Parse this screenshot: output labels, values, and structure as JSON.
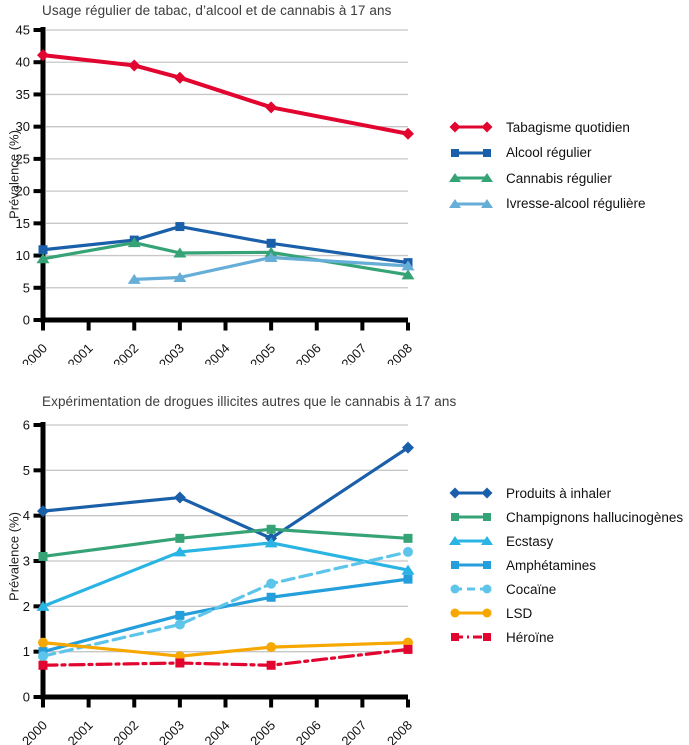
{
  "chart_data": [
    {
      "type": "line",
      "title": "Usage régulier de tabac, d’alcool et de cannabis à 17 ans",
      "ylabel": "Prévalence (%)",
      "xlabel": "",
      "x": [
        2000,
        2002,
        2003,
        2005,
        2008
      ],
      "x_ticks": [
        2000,
        2001,
        2002,
        2003,
        2004,
        2005,
        2006,
        2007,
        2008
      ],
      "xlim": [
        2000,
        2008
      ],
      "ylim": [
        0,
        45
      ],
      "y_tick_step": 5,
      "grid": true,
      "legend_position": "right",
      "series": [
        {
          "key": "tabagisme-quotidien",
          "name": "Tabagisme quotidien",
          "color": "#e2052f",
          "marker": "diamond",
          "dash": "solid",
          "values": [
            41.1,
            39.5,
            37.6,
            33.0,
            28.9
          ]
        },
        {
          "key": "alcool-regulier",
          "name": "Alcool régulier",
          "color": "#1a5fa9",
          "marker": "square",
          "dash": "solid",
          "values": [
            10.9,
            12.4,
            14.5,
            11.9,
            8.9
          ]
        },
        {
          "key": "cannabis-regulier",
          "name": "Cannabis régulier",
          "color": "#36a377",
          "marker": "triangle",
          "dash": "solid",
          "values": [
            9.5,
            12.0,
            10.4,
            10.5,
            7.0
          ]
        },
        {
          "key": "ivresse-alcool-reguliere",
          "name": "Ivresse-alcool régulière",
          "color": "#66aed7",
          "marker": "triangle",
          "dash": "solid",
          "values": [
            null,
            6.3,
            6.6,
            9.7,
            8.4
          ]
        }
      ]
    },
    {
      "type": "line",
      "title": "Expérimentation de drogues illicites autres que le cannabis à 17 ans",
      "ylabel": "Prévalence (%)",
      "xlabel": "",
      "x": [
        2000,
        2003,
        2005,
        2008
      ],
      "x_ticks": [
        2000,
        2001,
        2002,
        2003,
        2004,
        2005,
        2006,
        2007,
        2008
      ],
      "xlim": [
        2000,
        2008
      ],
      "ylim": [
        0,
        6
      ],
      "y_tick_step": 1,
      "grid": true,
      "legend_position": "right",
      "series": [
        {
          "key": "produits-a-inhaler",
          "name": "Produits à inhaler",
          "color": "#1a5fa9",
          "marker": "diamond",
          "dash": "solid",
          "values": [
            4.1,
            4.4,
            3.5,
            5.5
          ]
        },
        {
          "key": "champignons-hallucinogenes",
          "name": "Champignons hallucinogènes",
          "color": "#36a377",
          "marker": "square",
          "dash": "solid",
          "values": [
            3.1,
            3.5,
            3.7,
            3.5
          ]
        },
        {
          "key": "ecstasy",
          "name": "Ecstasy",
          "color": "#2ab4e4",
          "marker": "triangle",
          "dash": "solid",
          "values": [
            2.0,
            3.2,
            3.4,
            2.8
          ]
        },
        {
          "key": "amphetamines",
          "name": "Amphétamines",
          "color": "#259fdb",
          "marker": "square",
          "dash": "solid",
          "values": [
            1.0,
            1.8,
            2.2,
            2.6
          ]
        },
        {
          "key": "cocaine",
          "name": "Cocaïne",
          "color": "#5ec5ea",
          "marker": "circle",
          "dash": "dashed",
          "values": [
            0.9,
            1.6,
            2.5,
            3.2
          ]
        },
        {
          "key": "lsd",
          "name": "LSD",
          "color": "#f6a700",
          "marker": "circle",
          "dash": "solid",
          "values": [
            1.2,
            0.9,
            1.1,
            1.2
          ]
        },
        {
          "key": "heroine",
          "name": "Héroïne",
          "color": "#e2052f",
          "marker": "square",
          "dash": "dashdot",
          "values": [
            0.7,
            0.75,
            0.7,
            1.05
          ]
        }
      ]
    }
  ]
}
